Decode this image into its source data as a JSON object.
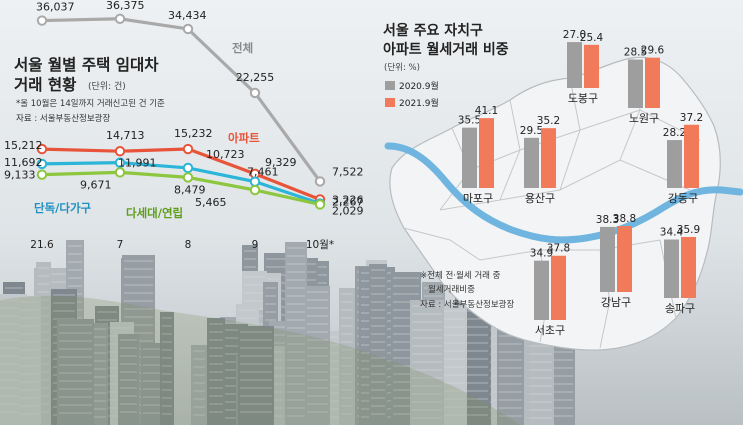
{
  "left_title_line1": "서울 월별 주택 임대차",
  "left_title_line2": "거래 현황",
  "left_unit": "(단위: 건)",
  "left_note": "*올 10월은 14일까지 거래신고된 건 기준",
  "left_source": "자료 : 서울부동산정보광장",
  "right_title_line1": "서울 주요 자치구",
  "right_title_line2": "아파트 월세거래 비중",
  "right_unit": "(단위: %)",
  "right_footnote_1": "※전체 전·월세 거래 중",
  "right_footnote_2": "월세거래비중",
  "right_source": "자료 : 서울부동산정보광장",
  "colors": {
    "total": "#a9a9a9",
    "apt": "#e8543a",
    "single": "#2bb5d8",
    "multi": "#8dc63f",
    "y2020": "#9e9e9e",
    "y2021": "#f07a5a"
  },
  "chart_data": [
    {
      "type": "line",
      "title": "서울 월별 주택 임대차 거래 현황",
      "x": [
        "21.6",
        "7",
        "8",
        "9",
        "10월*"
      ],
      "series": [
        {
          "name": "전체",
          "values": [
            36037,
            36375,
            34434,
            22255,
            7522
          ],
          "labels": [
            "36,037",
            "36,375",
            "34,434",
            "22,255",
            "7,522"
          ]
        },
        {
          "name": "아파트",
          "values": [
            15212,
            14713,
            15232,
            9329,
            3226
          ],
          "labels": [
            "15,212",
            "14,713",
            "15,232",
            "9,329",
            "3,226"
          ]
        },
        {
          "name": "단독/다가구",
          "values": [
            11692,
            11991,
            10723,
            7461,
            2267
          ],
          "labels": [
            "11,692",
            "11,991",
            "10,723",
            "7,461",
            "2,267"
          ]
        },
        {
          "name": "다세대/연립",
          "values": [
            9133,
            9671,
            8479,
            5465,
            2029
          ],
          "labels": [
            "9,133",
            "9,671",
            "8,479",
            "5,465",
            "2,029"
          ]
        }
      ]
    },
    {
      "type": "bar",
      "title": "서울 주요 자치구 아파트 월세거래 비중",
      "categories": [
        "도봉구",
        "노원구",
        "마포구",
        "용산구",
        "강동구",
        "서초구",
        "강남구",
        "송파구"
      ],
      "series": [
        {
          "name": "2020.9월",
          "values": [
            27.0,
            28.5,
            35.5,
            29.5,
            28.2,
            34.9,
            38.3,
            34.4
          ]
        },
        {
          "name": "2021.9월",
          "values": [
            25.4,
            29.6,
            41.1,
            35.2,
            37.2,
            37.8,
            38.8,
            35.9
          ]
        }
      ]
    }
  ]
}
